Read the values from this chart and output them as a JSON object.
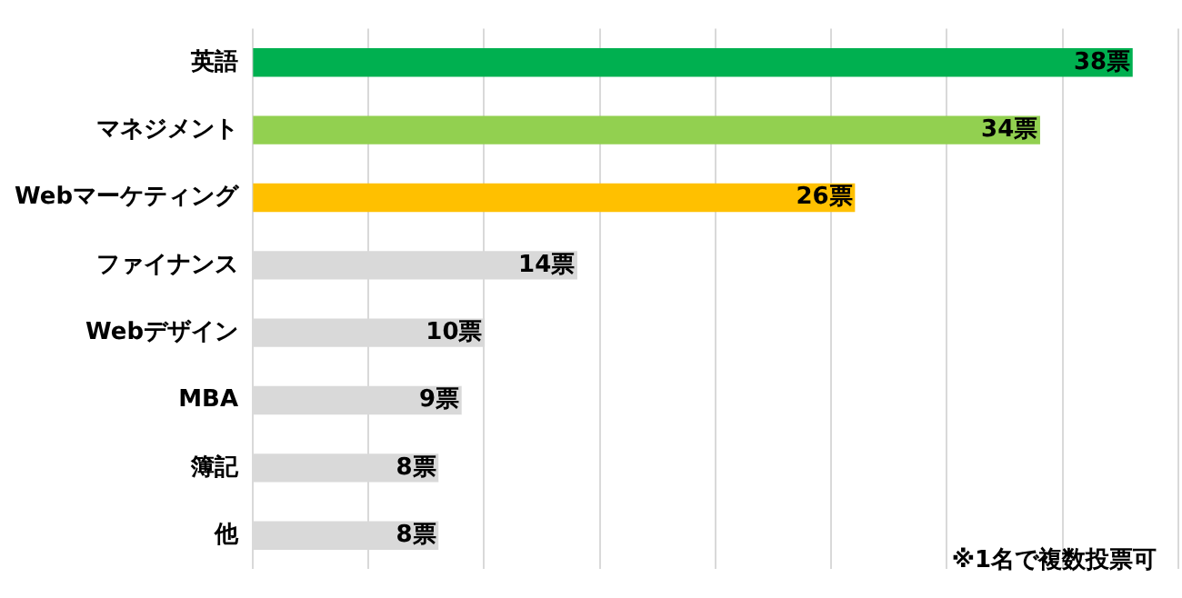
{
  "chart_data": {
    "type": "bar",
    "orientation": "horizontal",
    "categories": [
      "英語",
      "マネジメント",
      "Webマーケティング",
      "ファイナンス",
      "Webデザイン",
      "MBA",
      "簿記",
      "他"
    ],
    "values": [
      38,
      34,
      26,
      14,
      10,
      9,
      8,
      8
    ],
    "colors": [
      "#00b050",
      "#92d050",
      "#ffc000",
      "#d9d9d9",
      "#d9d9d9",
      "#d9d9d9",
      "#d9d9d9",
      "#d9d9d9"
    ],
    "value_labels": [
      "38票",
      "34票",
      "26票",
      "14票",
      "10票",
      "9票",
      "8票",
      "8票"
    ],
    "xlim": [
      0,
      40
    ],
    "xticks": [
      {
        "value": 0,
        "label": null
      },
      {
        "value": 5,
        "label": null
      },
      {
        "value": 10,
        "label": null
      },
      {
        "value": 15,
        "label": null
      },
      {
        "value": 20,
        "label": null
      },
      {
        "value": 25,
        "label": null
      },
      {
        "value": 30,
        "label": null
      },
      {
        "value": 35,
        "label": null
      },
      {
        "value": 40,
        "label": null
      }
    ],
    "tick_labels": "y",
    "grid": "x",
    "legend": false,
    "annotations": [
      "※1名で複数投票可"
    ]
  }
}
